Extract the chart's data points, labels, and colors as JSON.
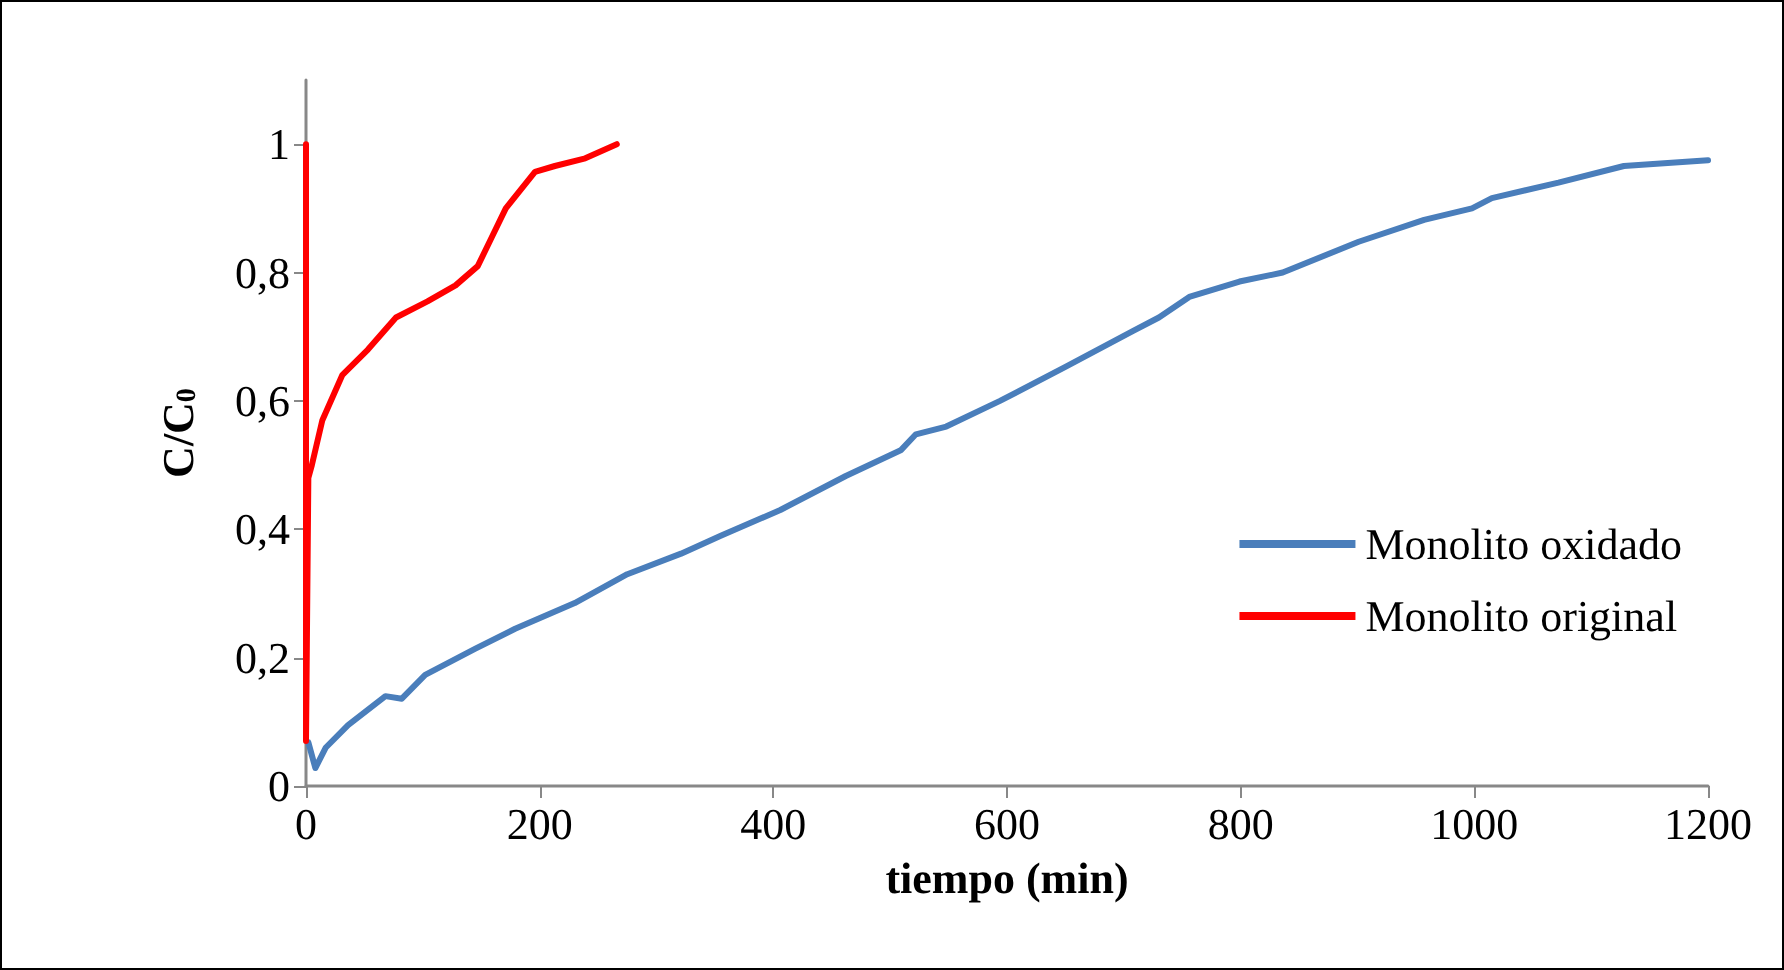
{
  "chart_data": {
    "type": "line",
    "xlabel": "tiempo (min)",
    "ylabel": "C/C$_{0}$",
    "xlim": [
      0,
      1200
    ],
    "xticks": [
      0,
      200,
      400,
      600,
      800,
      1000,
      1200
    ],
    "ylim": [
      0,
      1.1
    ],
    "yticks": [
      0,
      {
        "value": 0.2,
        "label": "0,2"
      },
      {
        "value": 0.4,
        "label": "0,4"
      },
      {
        "value": 0.6,
        "label": "0,6"
      },
      {
        "value": 0.8,
        "label": "0,8"
      },
      1
    ],
    "grid": false,
    "legend": "right",
    "marker": "none",
    "line_style": "solid",
    "series": [
      {
        "name": "Monolito oxidado",
        "color": "#4a7ebb",
        "x": [
          2,
          8,
          17,
          36,
          68,
          82,
          102,
          145,
          179,
          230,
          275,
          321,
          355,
          406,
          462,
          509,
          522,
          548,
          594,
          650,
          708,
          730,
          756,
          799,
          836,
          901,
          957,
          998,
          1015,
          1072,
          1128,
          1200
        ],
        "values": [
          0.068,
          0.028,
          0.06,
          0.095,
          0.14,
          0.136,
          0.173,
          0.214,
          0.245,
          0.285,
          0.33,
          0.362,
          0.39,
          0.43,
          0.483,
          0.523,
          0.548,
          0.56,
          0.6,
          0.653,
          0.709,
          0.73,
          0.762,
          0.786,
          0.8,
          0.848,
          0.882,
          0.9,
          0.916,
          0.94,
          0.966,
          0.975
        ]
      },
      {
        "name": "Monolito original",
        "color": "#ff0000",
        "x": [
          0,
          0,
          2,
          5,
          14,
          31,
          53,
          77,
          104,
          128,
          147,
          159,
          171,
          196,
          213,
          239,
          266
        ],
        "values": [
          1,
          0.07,
          0.48,
          0.5,
          0.57,
          0.64,
          0.68,
          0.73,
          0.755,
          0.78,
          0.81,
          0.855,
          0.9,
          0.957,
          0.966,
          0.978,
          1.0
        ]
      }
    ]
  }
}
